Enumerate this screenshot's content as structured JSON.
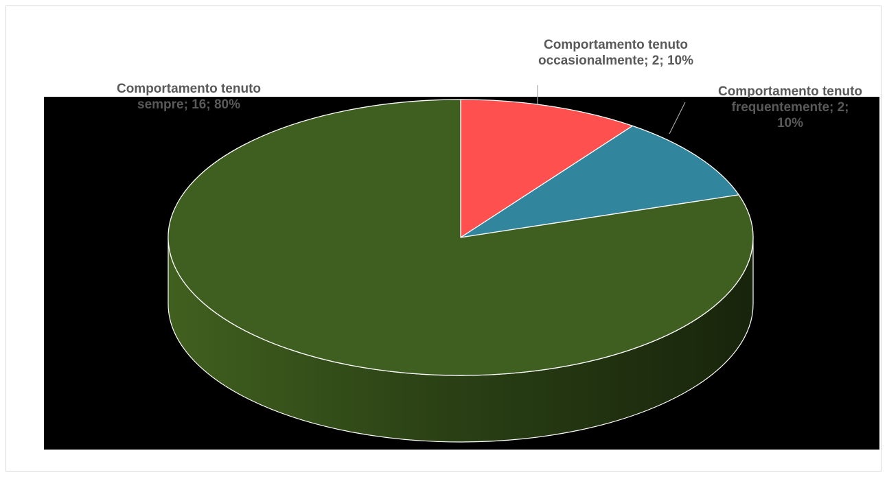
{
  "chart_data": {
    "type": "pie",
    "style": "3d",
    "title": "",
    "slices": [
      {
        "category": "Comportamento tenuto occasionalmente",
        "value": 2,
        "percent": "10%",
        "label_lines": [
          "Comportamento tenuto",
          "occasionalmente; 2; 10%"
        ],
        "color": "#ff5050"
      },
      {
        "category": "Comportamento tenuto frequentemente",
        "value": 2,
        "percent": "10%",
        "label_lines": [
          "Comportamento tenuto",
          "frequentemente; 2;",
          "10%"
        ],
        "color": "#31859c"
      },
      {
        "category": "Comportamento tenuto sempre",
        "value": 16,
        "percent": "80%",
        "label_lines": [
          "Comportamento tenuto",
          "sempre; 16; 80%"
        ],
        "color": "#3f5f21"
      }
    ],
    "label_color": "#595959",
    "plot_background": "#000000",
    "legend": "none"
  }
}
